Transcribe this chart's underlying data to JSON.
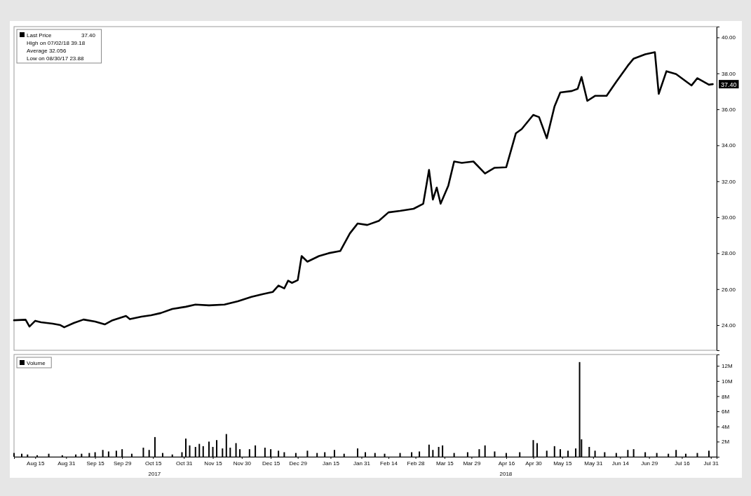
{
  "chart_data": [
    {
      "type": "line",
      "legend": "top left",
      "tick_labels": "y",
      "grid": false,
      "x": [
        "2017-08-04",
        "2017-08-10",
        "2017-08-12",
        "2017-08-15",
        "2017-08-18",
        "2017-08-24",
        "2017-08-28",
        "2017-08-30",
        "2017-09-04",
        "2017-09-09",
        "2017-09-15",
        "2017-09-20",
        "2017-09-24",
        "2017-10-01",
        "2017-10-03",
        "2017-10-09",
        "2017-10-14",
        "2017-10-19",
        "2017-10-25",
        "2017-11-01",
        "2017-11-06",
        "2017-11-13",
        "2017-11-21",
        "2017-11-28",
        "2017-12-05",
        "2017-12-11",
        "2017-12-16",
        "2017-12-19",
        "2017-12-22",
        "2017-12-24",
        "2017-12-26",
        "2017-12-29",
        "2017-12-31",
        "2018-01-03",
        "2018-01-09",
        "2018-01-14",
        "2018-01-20",
        "2018-01-25",
        "2018-01-29",
        "2018-02-03",
        "2018-02-09",
        "2018-02-14",
        "2018-02-20",
        "2018-02-27",
        "2018-03-04",
        "2018-03-07",
        "2018-03-09",
        "2018-03-11",
        "2018-03-13",
        "2018-03-17",
        "2018-03-20",
        "2018-03-24",
        "2018-03-30",
        "2018-04-05",
        "2018-04-10",
        "2018-04-16",
        "2018-04-21",
        "2018-04-24",
        "2018-04-30",
        "2018-05-03",
        "2018-05-07",
        "2018-05-11",
        "2018-05-14",
        "2018-05-20",
        "2018-05-23",
        "2018-05-25",
        "2018-05-28",
        "2018-06-01",
        "2018-06-07",
        "2018-06-12",
        "2018-06-18",
        "2018-06-21",
        "2018-06-27",
        "2018-07-02",
        "2018-07-04",
        "2018-07-08",
        "2018-07-13",
        "2018-07-21",
        "2018-07-24",
        "2018-07-30",
        "2018-08-01"
      ],
      "series": [
        {
          "name": "Last Price",
          "color": "#000000",
          "values": [
            24.27,
            24.3,
            23.92,
            24.24,
            24.16,
            24.08,
            24.0,
            23.88,
            24.12,
            24.31,
            24.2,
            24.04,
            24.27,
            24.51,
            24.33,
            24.47,
            24.55,
            24.67,
            24.9,
            25.02,
            25.14,
            25.1,
            25.14,
            25.33,
            25.57,
            25.73,
            25.84,
            26.2,
            26.04,
            26.47,
            26.35,
            26.5,
            27.84,
            27.53,
            27.84,
            28.0,
            28.12,
            29.1,
            29.65,
            29.57,
            29.8,
            30.27,
            30.35,
            30.47,
            30.75,
            32.63,
            30.98,
            31.65,
            30.75,
            31.76,
            33.1,
            33.02,
            33.1,
            32.43,
            32.75,
            32.78,
            34.67,
            34.9,
            35.69,
            35.57,
            34.39,
            36.16,
            36.94,
            37.02,
            37.14,
            37.8,
            36.47,
            36.75,
            36.75,
            37.53,
            38.43,
            38.82,
            39.06,
            39.18,
            36.86,
            38.12,
            37.96,
            37.33,
            37.73,
            37.37,
            37.4
          ]
        }
      ],
      "xlim": [
        "2017-08-04",
        "2018-08-03"
      ],
      "ylim": [
        22.6,
        40.6
      ],
      "yticks": [
        {
          "value": 24,
          "label": "24.00"
        },
        {
          "value": 26,
          "label": "26.00"
        },
        {
          "value": 28,
          "label": "28.00"
        },
        {
          "value": 30,
          "label": "30.00"
        },
        {
          "value": 32,
          "label": "32.00"
        },
        {
          "value": 34,
          "label": "34.00"
        },
        {
          "value": 36,
          "label": "36.00"
        },
        {
          "value": 38,
          "label": "38.00"
        },
        {
          "value": 40,
          "label": "40.00"
        }
      ],
      "annotations": [
        {
          "text": "37.40",
          "y": 37.4
        },
        "High on 07/02/18 39.18",
        "Average 32.056",
        "Low on 08/30/17 23.88"
      ]
    },
    {
      "type": "bar",
      "legend": "top left",
      "tick_labels": true,
      "grid": false,
      "x": [
        "2017-08-04",
        "2017-08-08",
        "2017-08-11",
        "2017-08-16",
        "2017-08-22",
        "2017-08-29",
        "2017-09-05",
        "2017-09-08",
        "2017-09-12",
        "2017-09-15",
        "2017-09-19",
        "2017-09-22",
        "2017-09-26",
        "2017-09-29",
        "2017-10-04",
        "2017-10-10",
        "2017-10-13",
        "2017-10-16",
        "2017-10-20",
        "2017-10-25",
        "2017-10-30",
        "2017-11-01",
        "2017-11-03",
        "2017-11-06",
        "2017-11-08",
        "2017-11-10",
        "2017-11-13",
        "2017-11-15",
        "2017-11-17",
        "2017-11-20",
        "2017-11-22",
        "2017-11-24",
        "2017-11-27",
        "2017-11-29",
        "2017-12-04",
        "2017-12-07",
        "2017-12-12",
        "2017-12-15",
        "2017-12-19",
        "2017-12-22",
        "2017-12-28",
        "2018-01-03",
        "2018-01-08",
        "2018-01-12",
        "2018-01-17",
        "2018-01-22",
        "2018-01-29",
        "2018-02-02",
        "2018-02-07",
        "2018-02-12",
        "2018-02-20",
        "2018-02-26",
        "2018-03-02",
        "2018-03-07",
        "2018-03-09",
        "2018-03-12",
        "2018-03-14",
        "2018-03-20",
        "2018-03-27",
        "2018-04-02",
        "2018-04-05",
        "2018-04-10",
        "2018-04-16",
        "2018-04-23",
        "2018-04-30",
        "2018-05-02",
        "2018-05-07",
        "2018-05-11",
        "2018-05-14",
        "2018-05-18",
        "2018-05-22",
        "2018-05-24",
        "2018-05-25",
        "2018-05-29",
        "2018-06-01",
        "2018-06-06",
        "2018-06-12",
        "2018-06-18",
        "2018-06-21",
        "2018-06-27",
        "2018-07-03",
        "2018-07-09",
        "2018-07-13",
        "2018-07-18",
        "2018-07-24",
        "2018-07-30"
      ],
      "series": [
        {
          "name": "Volume",
          "color": "#000000",
          "values": [
            0.5,
            0.4,
            0.3,
            0.2,
            0.4,
            0.2,
            0.3,
            0.4,
            0.5,
            0.6,
            0.9,
            0.7,
            0.8,
            1.0,
            0.4,
            1.2,
            0.9,
            2.6,
            0.5,
            0.3,
            0.6,
            2.4,
            1.5,
            1.3,
            1.7,
            1.4,
            2.0,
            1.3,
            2.2,
            1.1,
            3.0,
            1.2,
            1.8,
            1.0,
            1.0,
            1.5,
            1.2,
            1.0,
            0.8,
            0.6,
            0.5,
            0.8,
            0.5,
            0.6,
            0.9,
            0.4,
            1.1,
            0.6,
            0.5,
            0.4,
            0.5,
            0.6,
            0.7,
            1.6,
            0.9,
            1.3,
            1.5,
            0.5,
            0.6,
            1.0,
            1.5,
            0.7,
            0.5,
            0.6,
            2.2,
            1.8,
            0.8,
            1.4,
            1.0,
            0.8,
            1.1,
            12.5,
            2.3,
            1.3,
            0.8,
            0.6,
            0.5,
            0.9,
            1.0,
            0.6,
            0.5,
            0.4,
            0.9,
            0.4,
            0.5,
            0.8
          ]
        }
      ],
      "xlim": [
        "2017-08-04",
        "2018-08-03"
      ],
      "xticks": [
        {
          "value": "2017-08-15",
          "label": "Aug 15"
        },
        {
          "value": "2017-08-31",
          "label": "Aug 31"
        },
        {
          "value": "2017-09-15",
          "label": "Sep 15"
        },
        {
          "value": "2017-09-29",
          "label": "Sep 29"
        },
        {
          "value": "2017-10-15",
          "label": "Oct 15"
        },
        {
          "value": "2017-10-31",
          "label": "Oct 31"
        },
        {
          "value": "2017-11-15",
          "label": "Nov 15"
        },
        {
          "value": "2017-11-30",
          "label": "Nov 30"
        },
        {
          "value": "2017-12-15",
          "label": "Dec 15"
        },
        {
          "value": "2017-12-29",
          "label": "Dec 29"
        },
        {
          "value": "2018-01-15",
          "label": "Jan 15"
        },
        {
          "value": "2018-01-31",
          "label": "Jan 31"
        },
        {
          "value": "2018-02-14",
          "label": "Feb 14"
        },
        {
          "value": "2018-02-28",
          "label": "Feb 28"
        },
        {
          "value": "2018-03-15",
          "label": "Mar 15"
        },
        {
          "value": "2018-03-29",
          "label": "Mar 29"
        },
        {
          "value": "2018-04-16",
          "label": "Apr 16"
        },
        {
          "value": "2018-04-30",
          "label": "Apr 30"
        },
        {
          "value": "2018-05-15",
          "label": "May 15"
        },
        {
          "value": "2018-05-31",
          "label": "May 31"
        },
        {
          "value": "2018-06-14",
          "label": "Jun 14"
        },
        {
          "value": "2018-06-29",
          "label": "Jun 29"
        },
        {
          "value": "2018-07-16",
          "label": "Jul 16"
        },
        {
          "value": "2018-07-31",
          "label": "Jul 31"
        }
      ],
      "ylim": [
        0,
        13.5
      ],
      "yticks": [
        {
          "value": 2,
          "label": "2M"
        },
        {
          "value": 4,
          "label": "4M"
        },
        {
          "value": 6,
          "label": "6M"
        },
        {
          "value": 8,
          "label": "8M"
        },
        {
          "value": 10,
          "label": "10M"
        },
        {
          "value": 12,
          "label": "12M"
        }
      ],
      "annotations": [
        "2017",
        "2018"
      ]
    }
  ]
}
